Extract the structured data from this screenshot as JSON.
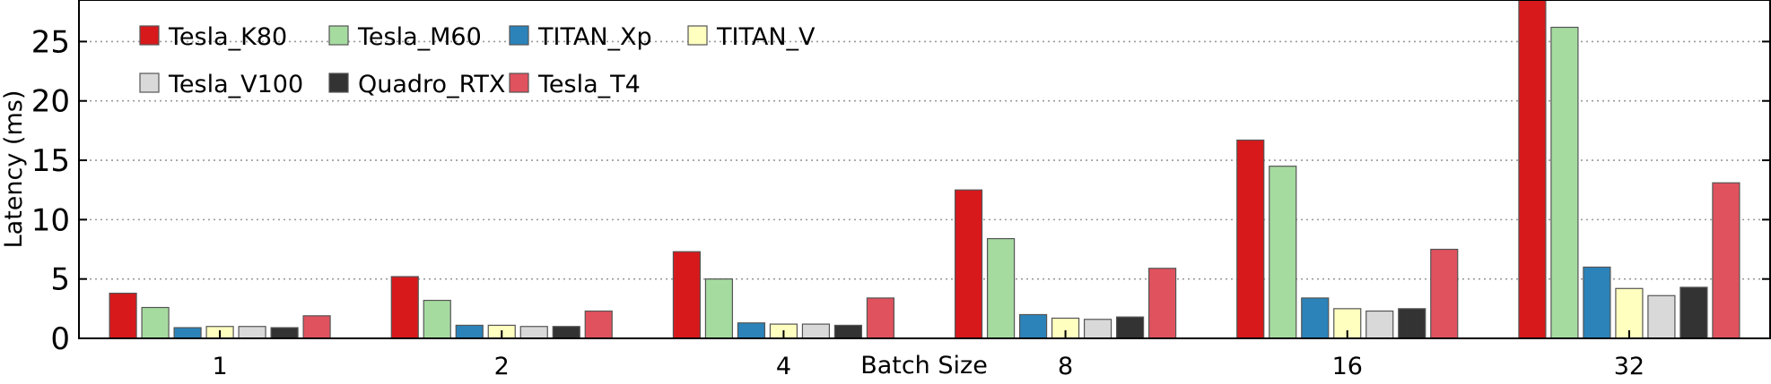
{
  "chart_data": {
    "type": "bar",
    "title": "",
    "xlabel": "Batch Size",
    "ylabel": "Latency (ms)",
    "categories": [
      "1",
      "2",
      "4",
      "8",
      "16",
      "32"
    ],
    "ylim": [
      0,
      28.5
    ],
    "yticks": [
      0,
      5,
      10,
      15,
      20,
      25
    ],
    "grid": "horizontal-dotted",
    "legend_position": "top-left",
    "series": [
      {
        "name": "Tesla_K80",
        "color": "#d7191c",
        "values": [
          3.8,
          5.2,
          7.3,
          12.5,
          16.7,
          28.5
        ]
      },
      {
        "name": "Tesla_M60",
        "color": "#a6dba0",
        "values": [
          2.6,
          3.2,
          5.0,
          8.4,
          14.5,
          26.2
        ]
      },
      {
        "name": "TITAN_Xp",
        "color": "#2b83ba",
        "values": [
          0.9,
          1.1,
          1.3,
          2.0,
          3.4,
          6.0
        ]
      },
      {
        "name": "TITAN_V",
        "color": "#ffffbf",
        "values": [
          1.0,
          1.1,
          1.2,
          1.7,
          2.5,
          4.2
        ]
      },
      {
        "name": "Tesla_V100",
        "color": "#d9d9d9",
        "values": [
          1.0,
          1.0,
          1.2,
          1.6,
          2.3,
          3.6
        ]
      },
      {
        "name": "Quadro_RTX",
        "color": "#333333",
        "values": [
          0.9,
          1.0,
          1.1,
          1.8,
          2.5,
          4.3
        ]
      },
      {
        "name": "Tesla_T4",
        "color": "#e0525e",
        "values": [
          1.9,
          2.3,
          3.4,
          5.9,
          7.5,
          13.1
        ]
      }
    ]
  }
}
